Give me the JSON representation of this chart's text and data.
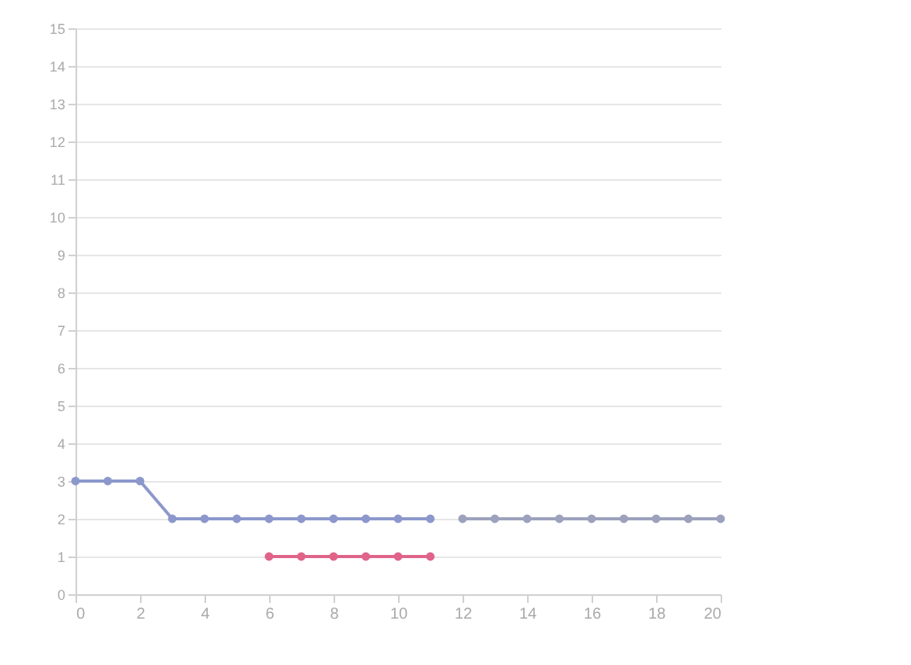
{
  "chart_data": {
    "type": "line",
    "marker": "circle",
    "line_style": "solid",
    "grid": "y",
    "xlim": [
      0,
      20
    ],
    "xticks": [
      0,
      2,
      4,
      6,
      8,
      10,
      12,
      14,
      16,
      18,
      20
    ],
    "ylim": [
      0,
      15
    ],
    "yticks": [
      0,
      1,
      2,
      3,
      4,
      5,
      6,
      7,
      8,
      9,
      10,
      11,
      12,
      13,
      14,
      15
    ],
    "series": [
      {
        "color": "#8c98cc",
        "x": [
          0,
          1,
          2,
          3,
          4,
          5,
          6,
          7,
          8,
          9,
          10,
          11
        ],
        "values": [
          3,
          3,
          3,
          2,
          2,
          2,
          2,
          2,
          2,
          2,
          2,
          2
        ]
      },
      {
        "color": "#e0648a",
        "x": [
          6,
          7,
          8,
          9,
          10,
          11
        ],
        "values": [
          1,
          1,
          1,
          1,
          1,
          1
        ]
      },
      {
        "color": "#9ca2bc",
        "x": [
          12,
          13,
          14,
          15,
          16,
          17,
          18,
          19,
          20
        ],
        "values": [
          2,
          2,
          2,
          2,
          2,
          2,
          2,
          2,
          2
        ]
      }
    ]
  }
}
